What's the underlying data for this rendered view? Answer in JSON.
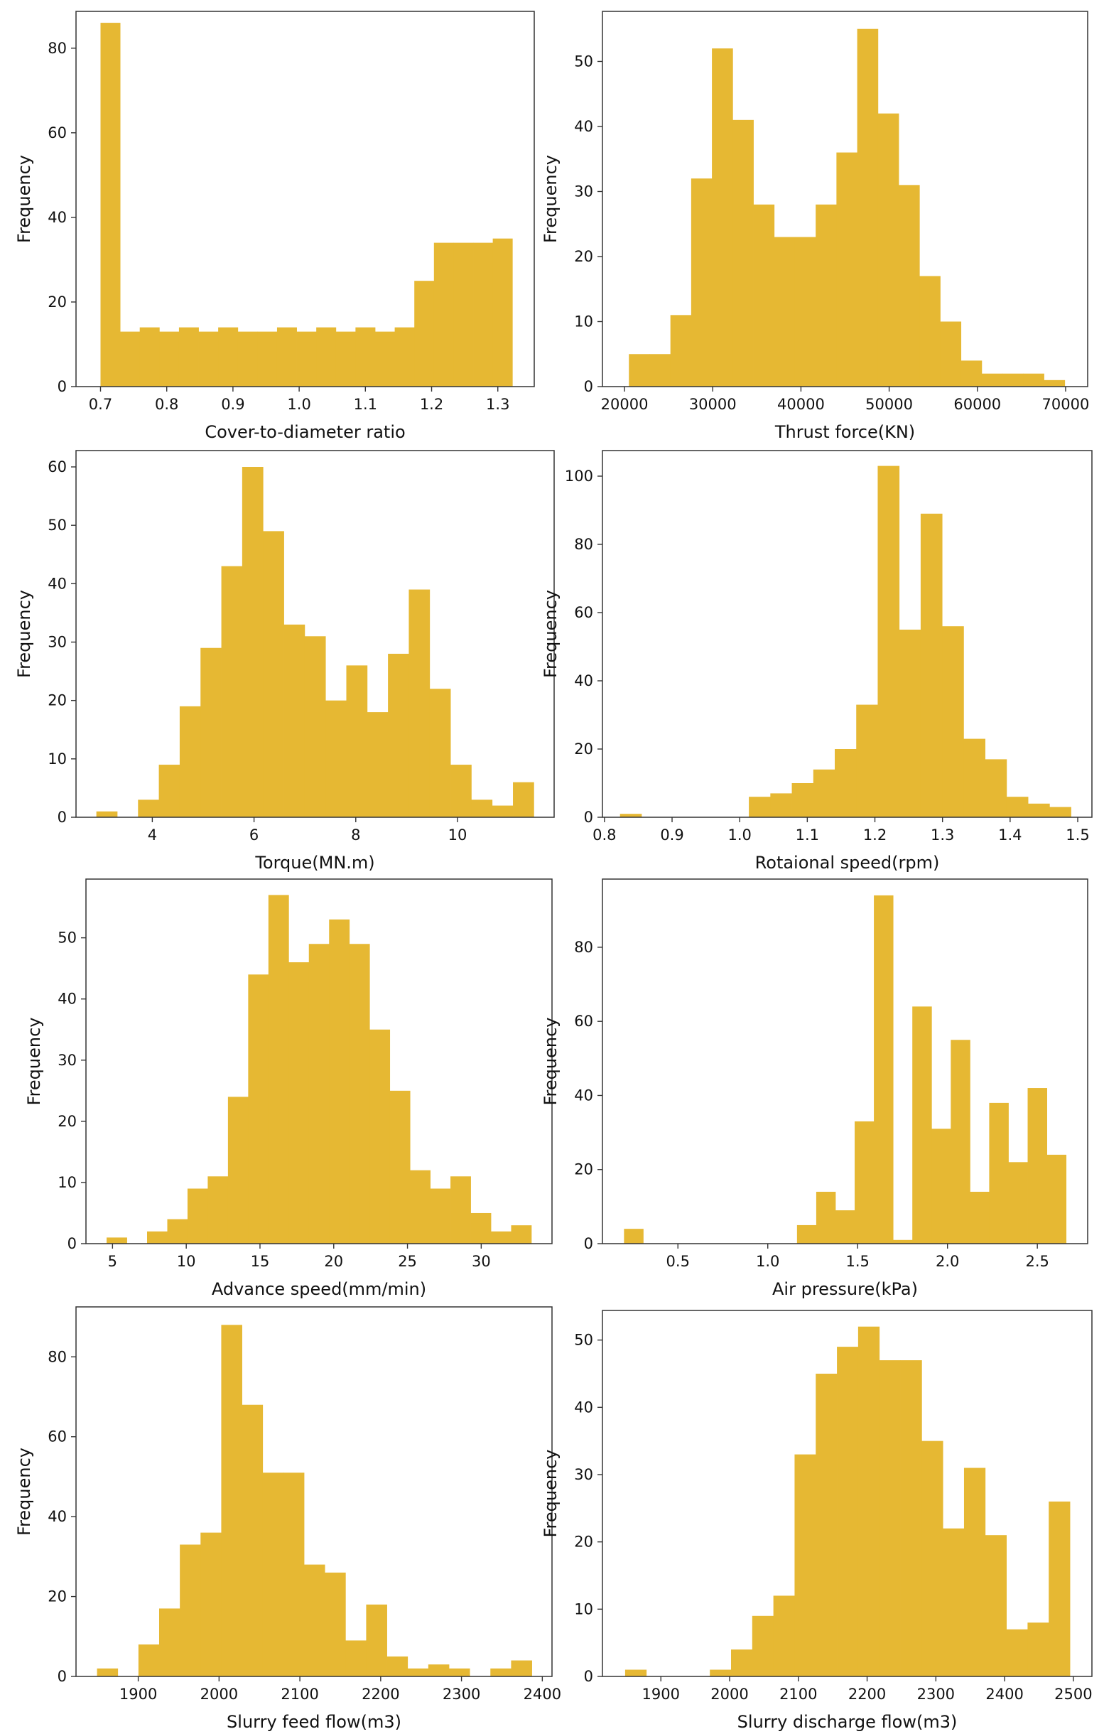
{
  "colors": {
    "bar": "#e6b833",
    "axis": "#333333",
    "text": "#111111",
    "background": "#ffffff"
  },
  "chart_data": [
    {
      "type": "bar",
      "title": "",
      "xlabel": "Cover-to-diameter ratio",
      "ylabel": "Frequency",
      "xlim": [
        0.663,
        1.355
      ],
      "ylim": [
        0,
        88.7
      ],
      "bin_start": 0.7,
      "bin_end": 1.322,
      "values": [
        86,
        13,
        14,
        13,
        14,
        13,
        14,
        13,
        13,
        14,
        13,
        14,
        13,
        14,
        13,
        14,
        25,
        34,
        34,
        34,
        35
      ],
      "xticks": [
        0.7,
        0.8,
        0.9,
        1.0,
        1.1,
        1.2,
        1.3
      ],
      "xtick_labels": [
        "0.7",
        "0.8",
        "0.9",
        "1.0",
        "1.1",
        "1.2",
        "1.3"
      ],
      "yticks": [
        0,
        20,
        40,
        60,
        80
      ],
      "ytick_labels": [
        "0",
        "20",
        "40",
        "60",
        "80"
      ]
    },
    {
      "type": "bar",
      "title": "",
      "xlabel": "Thrust force(KN)",
      "ylabel": "Frequency",
      "xlim": [
        17500,
        72500
      ],
      "ylim": [
        0,
        57.7
      ],
      "bin_start": 20500,
      "bin_end": 69900,
      "values": [
        5,
        5,
        11,
        32,
        52,
        41,
        28,
        23,
        23,
        28,
        36,
        55,
        42,
        31,
        17,
        10,
        4,
        2,
        2,
        2,
        1
      ],
      "xticks": [
        20000,
        30000,
        40000,
        50000,
        60000,
        70000
      ],
      "xtick_labels": [
        "20000",
        "30000",
        "40000",
        "50000",
        "60000",
        "70000"
      ],
      "yticks": [
        0,
        10,
        20,
        30,
        40,
        50
      ],
      "ytick_labels": [
        "0",
        "10",
        "20",
        "30",
        "40",
        "50"
      ]
    },
    {
      "type": "bar",
      "title": "",
      "xlabel": "Torque(MN.m)",
      "ylabel": "Frequency",
      "xlim": [
        2.5,
        11.9
      ],
      "ylim": [
        0,
        62.8
      ],
      "bin_start": 2.9,
      "bin_end": 11.5,
      "values": [
        1,
        0,
        3,
        9,
        19,
        29,
        43,
        60,
        49,
        33,
        31,
        20,
        26,
        18,
        28,
        39,
        22,
        9,
        3,
        2,
        6
      ],
      "xticks": [
        4,
        6,
        8,
        10
      ],
      "xtick_labels": [
        "4",
        "6",
        "8",
        "10"
      ],
      "yticks": [
        0,
        10,
        20,
        30,
        40,
        50,
        60
      ],
      "ytick_labels": [
        "0",
        "10",
        "20",
        "30",
        "40",
        "50",
        "60"
      ]
    },
    {
      "type": "bar",
      "title": "",
      "xlabel": "Rotaional speed(rpm)",
      "ylabel": "Frequency",
      "xlim": [
        0.797,
        1.521
      ],
      "ylim": [
        0,
        107.5
      ],
      "bin_start": 0.823,
      "bin_end": 1.49,
      "values": [
        1,
        0,
        0,
        0,
        0,
        0,
        6,
        7,
        10,
        14,
        20,
        33,
        103,
        55,
        89,
        56,
        23,
        17,
        6,
        4,
        3
      ],
      "xticks": [
        0.8,
        0.9,
        1.0,
        1.1,
        1.2,
        1.3,
        1.4,
        1.5
      ],
      "xtick_labels": [
        "0.8",
        "0.9",
        "1.0",
        "1.1",
        "1.2",
        "1.3",
        "1.4",
        "1.5"
      ],
      "yticks": [
        0,
        20,
        40,
        60,
        80,
        100
      ],
      "ytick_labels": [
        "0",
        "20",
        "40",
        "60",
        "80",
        "100"
      ]
    },
    {
      "type": "bar",
      "title": "",
      "xlabel": "Advance speed(mm/min)",
      "ylabel": "Frequency",
      "xlim": [
        3.2,
        34.8
      ],
      "ylim": [
        0,
        59.6
      ],
      "bin_start": 4.6,
      "bin_end": 33.4,
      "values": [
        1,
        0,
        2,
        4,
        9,
        11,
        24,
        44,
        57,
        46,
        49,
        53,
        49,
        35,
        25,
        12,
        9,
        11,
        5,
        2,
        3
      ],
      "xticks": [
        5,
        10,
        15,
        20,
        25,
        30
      ],
      "xtick_labels": [
        "5",
        "10",
        "15",
        "20",
        "25",
        "30"
      ],
      "yticks": [
        0,
        10,
        20,
        30,
        40,
        50
      ],
      "ytick_labels": [
        "0",
        "10",
        "20",
        "30",
        "40",
        "50"
      ]
    },
    {
      "type": "bar",
      "title": "",
      "xlabel": "Air pressure(kPa)",
      "ylabel": "Frequency",
      "xlim": [
        0.08,
        2.78
      ],
      "ylim": [
        0,
        98.4
      ],
      "bin_start": 0.2,
      "bin_end": 2.66,
      "values": [
        4,
        0,
        0,
        0,
        0,
        0,
        0,
        0,
        0,
        5,
        14,
        9,
        33,
        94,
        1,
        64,
        31,
        55,
        14,
        38,
        22,
        42,
        24
      ],
      "xticks": [
        0.5,
        1.0,
        1.5,
        2.0,
        2.5
      ],
      "xtick_labels": [
        "0.5",
        "1.0",
        "1.5",
        "2.0",
        "2.5"
      ],
      "yticks": [
        0,
        20,
        40,
        60,
        80
      ],
      "ytick_labels": [
        "0",
        "20",
        "40",
        "60",
        "80"
      ]
    },
    {
      "type": "bar",
      "title": "",
      "xlabel": "Slurry feed flow(m3)",
      "ylabel": "Frequency",
      "xlim": [
        1823,
        2412
      ],
      "ylim": [
        0,
        92.5
      ],
      "bin_start": 1849,
      "bin_end": 2387,
      "values": [
        2,
        0,
        8,
        17,
        33,
        36,
        88,
        68,
        51,
        51,
        28,
        26,
        9,
        18,
        5,
        2,
        3,
        2,
        0,
        2,
        4
      ],
      "xticks": [
        1900,
        2000,
        2100,
        2200,
        2300,
        2400
      ],
      "xtick_labels": [
        "1900",
        "2000",
        "2100",
        "2200",
        "2300",
        "2400"
      ],
      "yticks": [
        0,
        20,
        40,
        60,
        80
      ],
      "ytick_labels": [
        "0",
        "20",
        "40",
        "60",
        "80"
      ]
    },
    {
      "type": "bar",
      "title": "",
      "xlabel": "Slurry discharge flow(m3)",
      "ylabel": "Frequency",
      "xlim": [
        1815,
        2527
      ],
      "ylim": [
        0,
        54.4
      ],
      "bin_start": 1848,
      "bin_end": 2495,
      "values": [
        1,
        0,
        0,
        0,
        1,
        4,
        9,
        12,
        33,
        45,
        49,
        52,
        47,
        47,
        35,
        22,
        31,
        21,
        7,
        8,
        26
      ],
      "xticks": [
        1900,
        2000,
        2100,
        2200,
        2300,
        2400,
        2500
      ],
      "xtick_labels": [
        "1900",
        "2000",
        "2100",
        "2200",
        "2300",
        "2400",
        "2500"
      ],
      "yticks": [
        0,
        10,
        20,
        30,
        40,
        50
      ],
      "ytick_labels": [
        "0",
        "10",
        "20",
        "30",
        "40",
        "50"
      ]
    }
  ]
}
